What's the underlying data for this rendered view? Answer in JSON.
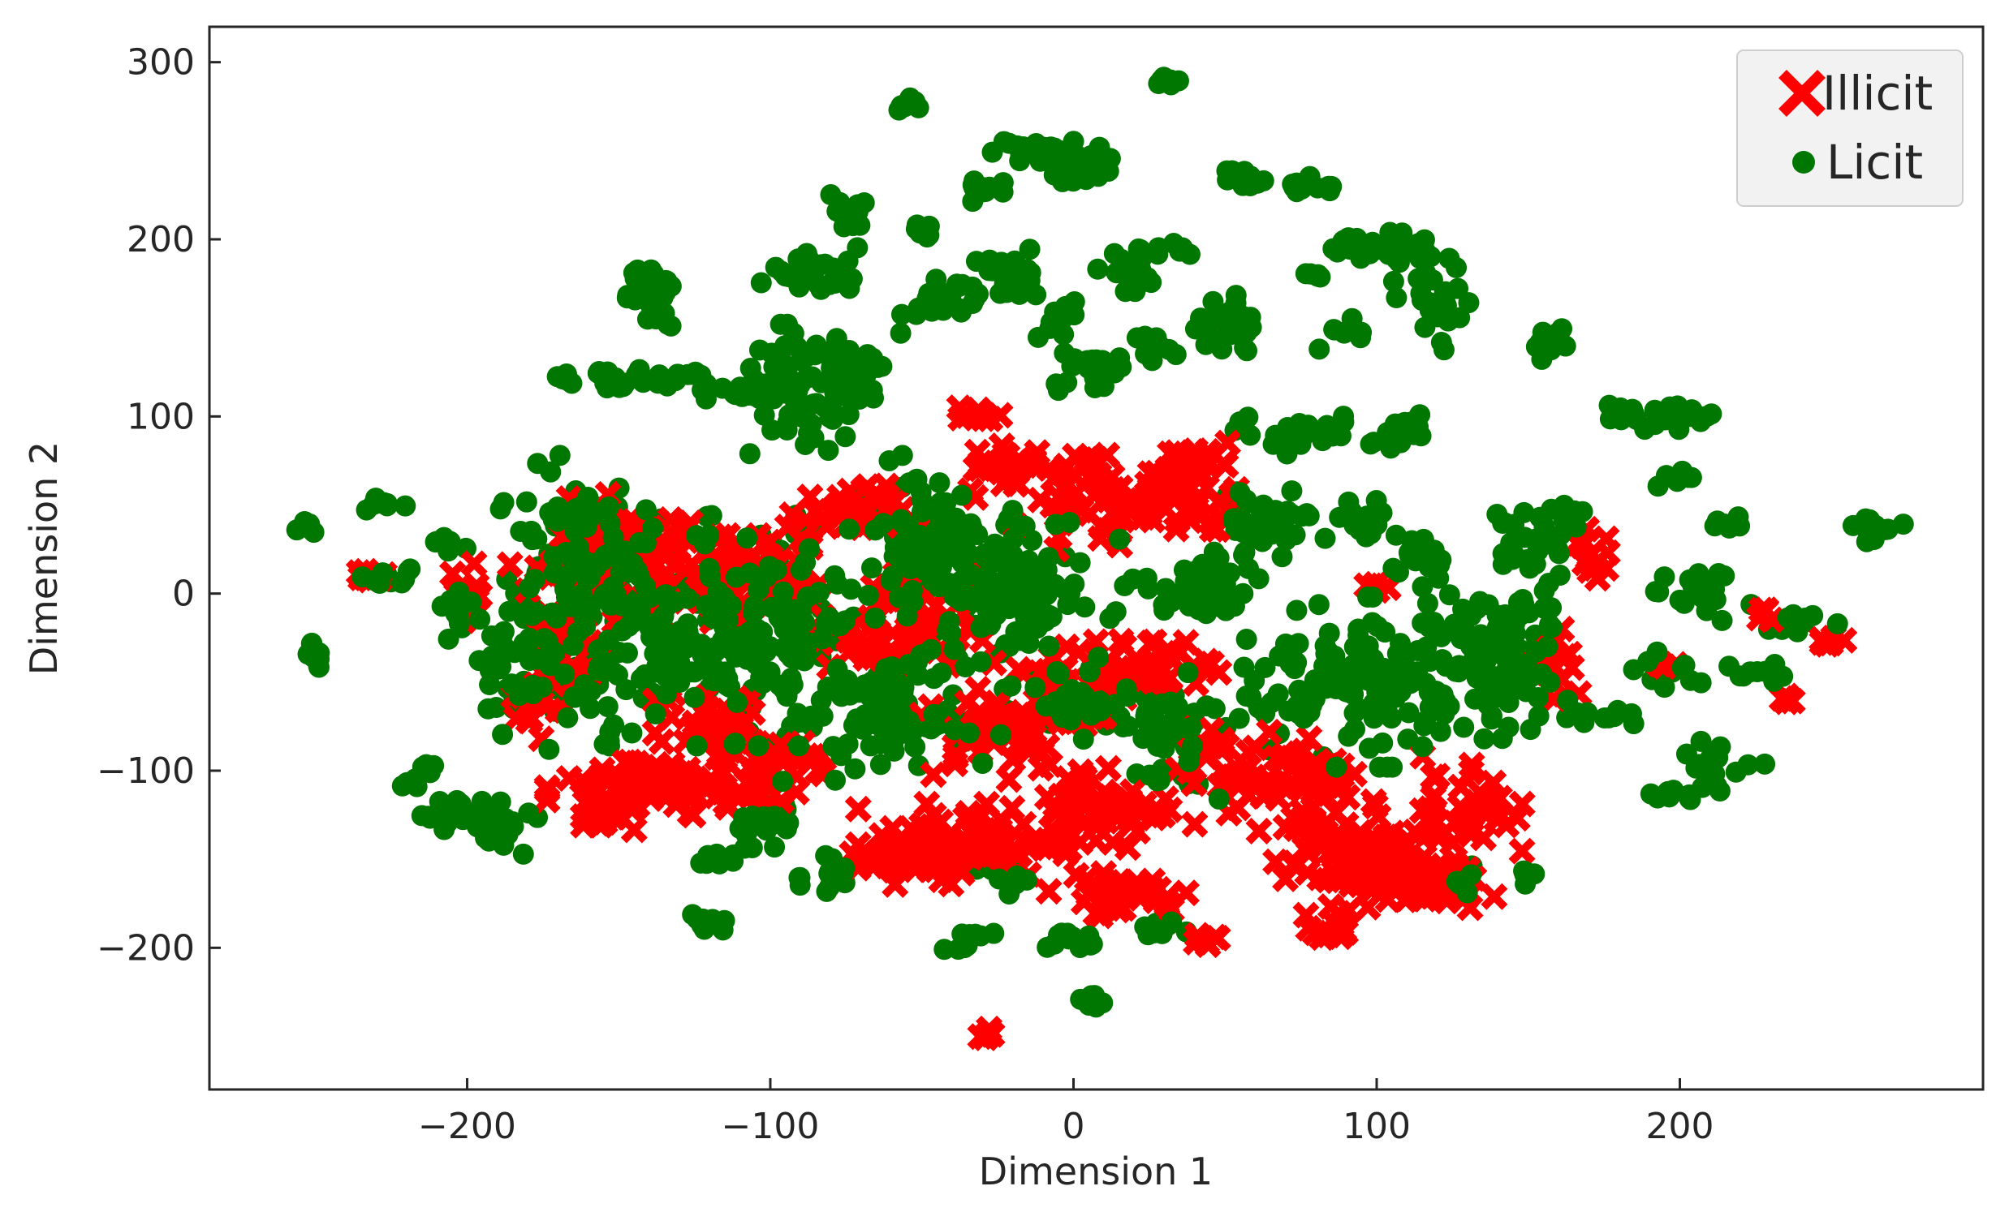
{
  "chart_data": {
    "type": "scatter",
    "title": "",
    "xlabel": "Dimension 1",
    "ylabel": "Dimension 2",
    "xlim": [
      -285,
      300
    ],
    "ylim": [
      -280,
      320
    ],
    "x_ticks": [
      -200,
      -100,
      0,
      100,
      200
    ],
    "y_ticks": [
      -200,
      -100,
      0,
      100,
      200,
      300
    ],
    "x_tick_labels": [
      "−200",
      "−100",
      "0",
      "100",
      "200"
    ],
    "y_tick_labels": [
      "−200",
      "−100",
      "0",
      "100",
      "200",
      "300"
    ],
    "grid": false,
    "legend_position": "top-right",
    "series": [
      {
        "name": "Illicit",
        "marker": "x",
        "color": "#ff0000",
        "clusters": [
          {
            "x": -150,
            "y": 20,
            "rx": 30,
            "ry": 30,
            "n": 90
          },
          {
            "x": -170,
            "y": -30,
            "rx": 12,
            "ry": 30,
            "n": 40
          },
          {
            "x": -180,
            "y": -70,
            "rx": 8,
            "ry": 10,
            "n": 10
          },
          {
            "x": -140,
            "y": -110,
            "rx": 28,
            "ry": 22,
            "n": 80
          },
          {
            "x": -105,
            "y": -100,
            "rx": 20,
            "ry": 20,
            "n": 50
          },
          {
            "x": -155,
            "y": -125,
            "rx": 10,
            "ry": 8,
            "n": 18
          },
          {
            "x": -120,
            "y": -70,
            "rx": 15,
            "ry": 15,
            "n": 30
          },
          {
            "x": -110,
            "y": 10,
            "rx": 22,
            "ry": 30,
            "n": 60
          },
          {
            "x": -75,
            "y": 45,
            "rx": 20,
            "ry": 15,
            "n": 40
          },
          {
            "x": -60,
            "y": -20,
            "rx": 25,
            "ry": 30,
            "n": 55
          },
          {
            "x": -35,
            "y": -140,
            "rx": 30,
            "ry": 20,
            "n": 80
          },
          {
            "x": -55,
            "y": -150,
            "rx": 15,
            "ry": 12,
            "n": 30
          },
          {
            "x": -25,
            "y": -75,
            "rx": 25,
            "ry": 25,
            "n": 50
          },
          {
            "x": -30,
            "y": 100,
            "rx": 8,
            "ry": 5,
            "n": 10
          },
          {
            "x": -20,
            "y": 70,
            "rx": 15,
            "ry": 15,
            "n": 30
          },
          {
            "x": 10,
            "y": -120,
            "rx": 25,
            "ry": 25,
            "n": 70
          },
          {
            "x": 15,
            "y": -170,
            "rx": 20,
            "ry": 10,
            "n": 40
          },
          {
            "x": 0,
            "y": -50,
            "rx": 25,
            "ry": 30,
            "n": 55
          },
          {
            "x": 5,
            "y": 55,
            "rx": 20,
            "ry": 25,
            "n": 45
          },
          {
            "x": 35,
            "y": 55,
            "rx": 20,
            "ry": 25,
            "n": 50
          },
          {
            "x": 40,
            "y": 75,
            "rx": 10,
            "ry": 8,
            "n": 15
          },
          {
            "x": 30,
            "y": -40,
            "rx": 15,
            "ry": 15,
            "n": 25
          },
          {
            "x": 50,
            "y": -100,
            "rx": 15,
            "ry": 20,
            "n": 30
          },
          {
            "x": 45,
            "y": -195,
            "rx": 5,
            "ry": 4,
            "n": 6
          },
          {
            "x": 75,
            "y": -110,
            "rx": 20,
            "ry": 35,
            "n": 50
          },
          {
            "x": 95,
            "y": -150,
            "rx": 25,
            "ry": 25,
            "n": 100
          },
          {
            "x": 115,
            "y": -165,
            "rx": 20,
            "ry": 15,
            "n": 40
          },
          {
            "x": 85,
            "y": -190,
            "rx": 8,
            "ry": 8,
            "n": 12
          },
          {
            "x": 130,
            "y": -120,
            "rx": 15,
            "ry": 30,
            "n": 40
          },
          {
            "x": 100,
            "y": 5,
            "rx": 5,
            "ry": 5,
            "n": 6
          },
          {
            "x": 170,
            "y": 20,
            "rx": 8,
            "ry": 15,
            "n": 15
          },
          {
            "x": 160,
            "y": -40,
            "rx": 8,
            "ry": 20,
            "n": 15
          },
          {
            "x": -230,
            "y": 10,
            "rx": 6,
            "ry": 5,
            "n": 8
          },
          {
            "x": -200,
            "y": 0,
            "rx": 7,
            "ry": 15,
            "n": 14
          },
          {
            "x": -30,
            "y": -250,
            "rx": 4,
            "ry": 5,
            "n": 5
          },
          {
            "x": 230,
            "y": -10,
            "rx": 5,
            "ry": 4,
            "n": 5
          },
          {
            "x": 250,
            "y": -25,
            "rx": 5,
            "ry": 5,
            "n": 6
          },
          {
            "x": 235,
            "y": -60,
            "rx": 4,
            "ry": 3,
            "n": 4
          },
          {
            "x": 195,
            "y": -40,
            "rx": 4,
            "ry": 4,
            "n": 4
          }
        ]
      },
      {
        "name": "Licit",
        "marker": "o",
        "color": "#007700",
        "clusters": [
          {
            "x": -250,
            "y": -35,
            "rx": 6,
            "ry": 10,
            "n": 10
          },
          {
            "x": -250,
            "y": 37,
            "rx": 6,
            "ry": 4,
            "n": 6
          },
          {
            "x": -230,
            "y": 50,
            "rx": 8,
            "ry": 4,
            "n": 8
          },
          {
            "x": -225,
            "y": 10,
            "rx": 10,
            "ry": 6,
            "n": 10
          },
          {
            "x": -205,
            "y": 30,
            "rx": 8,
            "ry": 5,
            "n": 8
          },
          {
            "x": -200,
            "y": -10,
            "rx": 10,
            "ry": 10,
            "n": 10
          },
          {
            "x": -215,
            "y": -100,
            "rx": 8,
            "ry": 10,
            "n": 8
          },
          {
            "x": -200,
            "y": -125,
            "rx": 15,
            "ry": 10,
            "n": 25
          },
          {
            "x": -185,
            "y": -135,
            "rx": 10,
            "ry": 12,
            "n": 15
          },
          {
            "x": -180,
            "y": -40,
            "rx": 22,
            "ry": 40,
            "n": 80
          },
          {
            "x": -165,
            "y": 30,
            "rx": 20,
            "ry": 40,
            "n": 80
          },
          {
            "x": -150,
            "y": 122,
            "rx": 35,
            "ry": 6,
            "n": 30
          },
          {
            "x": -140,
            "y": 175,
            "rx": 10,
            "ry": 15,
            "n": 25
          },
          {
            "x": -135,
            "y": 160,
            "rx": 5,
            "ry": 12,
            "n": 8
          },
          {
            "x": -110,
            "y": 115,
            "rx": 20,
            "ry": 8,
            "n": 20
          },
          {
            "x": -135,
            "y": -20,
            "rx": 35,
            "ry": 55,
            "n": 180
          },
          {
            "x": -95,
            "y": -20,
            "rx": 25,
            "ry": 55,
            "n": 140
          },
          {
            "x": -100,
            "y": -130,
            "rx": 10,
            "ry": 20,
            "n": 20
          },
          {
            "x": -115,
            "y": -150,
            "rx": 8,
            "ry": 5,
            "n": 8
          },
          {
            "x": -120,
            "y": -185,
            "rx": 8,
            "ry": 8,
            "n": 10
          },
          {
            "x": -80,
            "y": -160,
            "rx": 10,
            "ry": 10,
            "n": 15
          },
          {
            "x": -90,
            "y": 110,
            "rx": 20,
            "ry": 35,
            "n": 60
          },
          {
            "x": -75,
            "y": 120,
            "rx": 15,
            "ry": 20,
            "n": 40
          },
          {
            "x": -85,
            "y": 180,
            "rx": 15,
            "ry": 10,
            "n": 30
          },
          {
            "x": -75,
            "y": 210,
            "rx": 8,
            "ry": 15,
            "n": 20
          },
          {
            "x": -55,
            "y": 275,
            "rx": 7,
            "ry": 4,
            "n": 8
          },
          {
            "x": -50,
            "y": 205,
            "rx": 5,
            "ry": 5,
            "n": 5
          },
          {
            "x": -40,
            "y": 165,
            "rx": 15,
            "ry": 15,
            "n": 30
          },
          {
            "x": -30,
            "y": 230,
            "rx": 6,
            "ry": 10,
            "n": 10
          },
          {
            "x": -20,
            "y": 180,
            "rx": 10,
            "ry": 15,
            "n": 20
          },
          {
            "x": -10,
            "y": 250,
            "rx": 15,
            "ry": 8,
            "n": 25
          },
          {
            "x": 5,
            "y": 240,
            "rx": 12,
            "ry": 10,
            "n": 20
          },
          {
            "x": -5,
            "y": 155,
            "rx": 8,
            "ry": 10,
            "n": 10
          },
          {
            "x": 5,
            "y": 125,
            "rx": 15,
            "ry": 10,
            "n": 20
          },
          {
            "x": 25,
            "y": 140,
            "rx": 10,
            "ry": 8,
            "n": 12
          },
          {
            "x": 20,
            "y": 185,
            "rx": 10,
            "ry": 12,
            "n": 15
          },
          {
            "x": 30,
            "y": 290,
            "rx": 5,
            "ry": 3,
            "n": 6
          },
          {
            "x": 35,
            "y": 195,
            "rx": 6,
            "ry": 6,
            "n": 6
          },
          {
            "x": -50,
            "y": 30,
            "rx": 25,
            "ry": 40,
            "n": 100
          },
          {
            "x": -60,
            "y": -70,
            "rx": 25,
            "ry": 30,
            "n": 90
          },
          {
            "x": -20,
            "y": 0,
            "rx": 30,
            "ry": 45,
            "n": 120
          },
          {
            "x": 0,
            "y": -60,
            "rx": 20,
            "ry": 20,
            "n": 50
          },
          {
            "x": -35,
            "y": -195,
            "rx": 8,
            "ry": 8,
            "n": 10
          },
          {
            "x": -20,
            "y": -160,
            "rx": 10,
            "ry": 8,
            "n": 10
          },
          {
            "x": 0,
            "y": -195,
            "rx": 12,
            "ry": 5,
            "n": 12
          },
          {
            "x": 5,
            "y": -230,
            "rx": 5,
            "ry": 5,
            "n": 6
          },
          {
            "x": 30,
            "y": -190,
            "rx": 10,
            "ry": 6,
            "n": 10
          },
          {
            "x": 40,
            "y": 0,
            "rx": 20,
            "ry": 20,
            "n": 50
          },
          {
            "x": 60,
            "y": 40,
            "rx": 15,
            "ry": 20,
            "n": 40
          },
          {
            "x": 30,
            "y": -80,
            "rx": 15,
            "ry": 30,
            "n": 50
          },
          {
            "x": 50,
            "y": 150,
            "rx": 10,
            "ry": 20,
            "n": 25
          },
          {
            "x": 55,
            "y": 235,
            "rx": 8,
            "ry": 6,
            "n": 10
          },
          {
            "x": 80,
            "y": 230,
            "rx": 8,
            "ry": 6,
            "n": 10
          },
          {
            "x": 75,
            "y": 90,
            "rx": 20,
            "ry": 10,
            "n": 30
          },
          {
            "x": 90,
            "y": 150,
            "rx": 8,
            "ry": 10,
            "n": 10
          },
          {
            "x": 80,
            "y": 180,
            "rx": 5,
            "ry": 3,
            "n": 5
          },
          {
            "x": 100,
            "y": 195,
            "rx": 20,
            "ry": 8,
            "n": 25
          },
          {
            "x": 120,
            "y": 165,
            "rx": 12,
            "ry": 30,
            "n": 30
          },
          {
            "x": 110,
            "y": 90,
            "rx": 10,
            "ry": 12,
            "n": 15
          },
          {
            "x": 95,
            "y": 40,
            "rx": 10,
            "ry": 15,
            "n": 20
          },
          {
            "x": 115,
            "y": 20,
            "rx": 10,
            "ry": 20,
            "n": 20
          },
          {
            "x": 95,
            "y": -50,
            "rx": 40,
            "ry": 40,
            "n": 150
          },
          {
            "x": 140,
            "y": -40,
            "rx": 20,
            "ry": 35,
            "n": 80
          },
          {
            "x": 150,
            "y": 25,
            "rx": 12,
            "ry": 25,
            "n": 25
          },
          {
            "x": 155,
            "y": 140,
            "rx": 8,
            "ry": 10,
            "n": 10
          },
          {
            "x": 165,
            "y": 45,
            "rx": 10,
            "ry": 8,
            "n": 12
          },
          {
            "x": 175,
            "y": -70,
            "rx": 15,
            "ry": 4,
            "n": 10
          },
          {
            "x": 150,
            "y": -160,
            "rx": 4,
            "ry": 5,
            "n": 5
          },
          {
            "x": 130,
            "y": -160,
            "rx": 6,
            "ry": 10,
            "n": 8
          },
          {
            "x": 185,
            "y": 100,
            "rx": 12,
            "ry": 6,
            "n": 10
          },
          {
            "x": 205,
            "y": 100,
            "rx": 12,
            "ry": 8,
            "n": 12
          },
          {
            "x": 200,
            "y": 65,
            "rx": 6,
            "ry": 5,
            "n": 6
          },
          {
            "x": 215,
            "y": 40,
            "rx": 5,
            "ry": 5,
            "n": 5
          },
          {
            "x": 210,
            "y": 0,
            "rx": 15,
            "ry": 15,
            "n": 20
          },
          {
            "x": 195,
            "y": -45,
            "rx": 10,
            "ry": 10,
            "n": 12
          },
          {
            "x": 225,
            "y": -45,
            "rx": 10,
            "ry": 8,
            "n": 10
          },
          {
            "x": 240,
            "y": -15,
            "rx": 10,
            "ry": 6,
            "n": 10
          },
          {
            "x": 210,
            "y": -100,
            "rx": 15,
            "ry": 15,
            "n": 20
          },
          {
            "x": 195,
            "y": -115,
            "rx": 5,
            "ry": 5,
            "n": 5
          },
          {
            "x": 265,
            "y": 35,
            "rx": 8,
            "ry": 7,
            "n": 10
          },
          {
            "x": 150,
            "y": -15,
            "rx": 15,
            "ry": 15,
            "n": 20
          }
        ]
      }
    ]
  }
}
